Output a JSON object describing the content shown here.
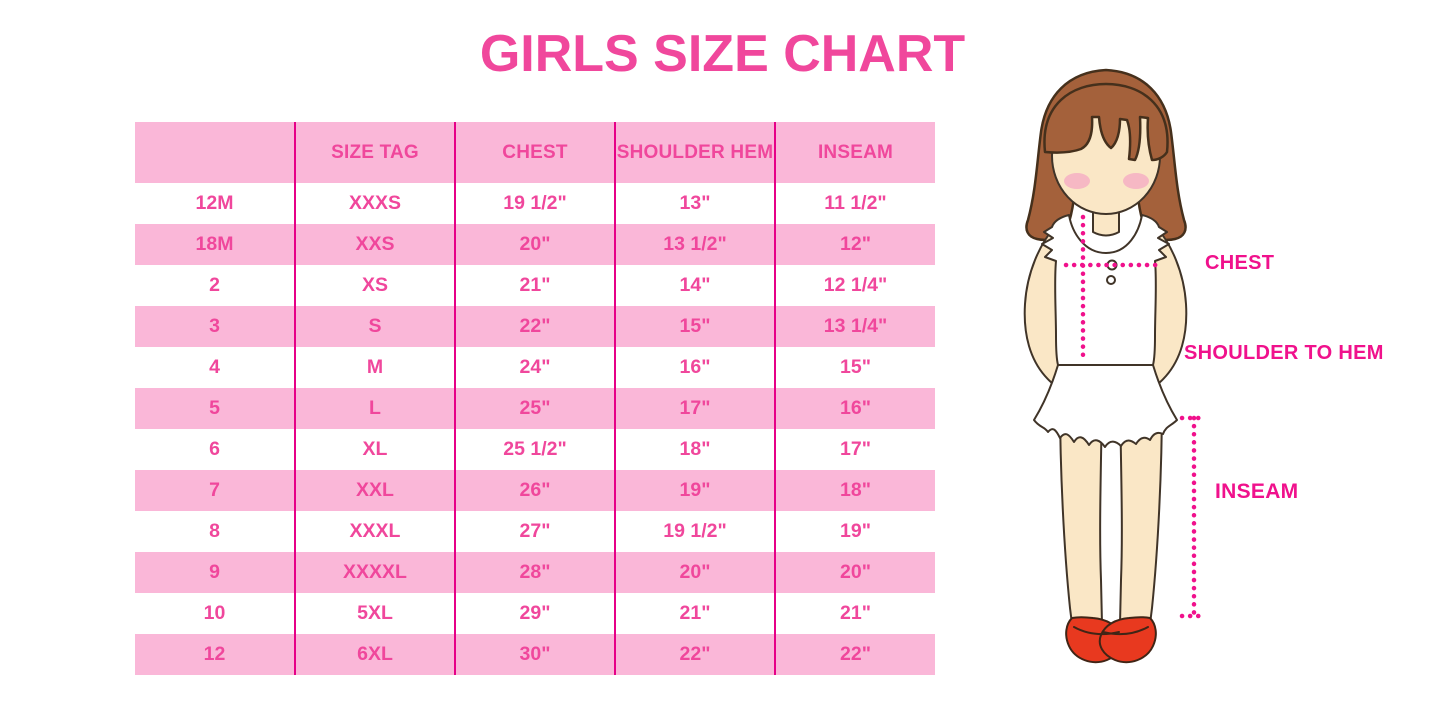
{
  "page": {
    "title": "GIRLS SIZE CHART"
  },
  "colors": {
    "title_pink": "#F0479C",
    "cell_text_pink": "#F0479C",
    "row_band_pink": "#FAB7D8",
    "column_separator_magenta": "#E60087",
    "measurement_pink": "#F0118C",
    "hair_brown": "#A4613B",
    "skin_tone": "#FAE7C6",
    "shoe_red": "#E8391F"
  },
  "chart_data": {
    "type": "table",
    "title": "GIRLS SIZE CHART",
    "columns": [
      "",
      "SIZE TAG",
      "CHEST",
      "SHOULDER HEM",
      "INSEAM"
    ],
    "rows": [
      [
        "12M",
        "XXXS",
        "19 1/2\"",
        "13\"",
        "11 1/2\""
      ],
      [
        "18M",
        "XXS",
        "20\"",
        "13 1/2\"",
        "12\""
      ],
      [
        "2",
        "XS",
        "21\"",
        "14\"",
        "12 1/4\""
      ],
      [
        "3",
        "S",
        "22\"",
        "15\"",
        "13 1/4\""
      ],
      [
        "4",
        "M",
        "24\"",
        "16\"",
        "15\""
      ],
      [
        "5",
        "L",
        "25\"",
        "17\"",
        "16\""
      ],
      [
        "6",
        "XL",
        "25 1/2\"",
        "18\"",
        "17\""
      ],
      [
        "7",
        "XXL",
        "26\"",
        "19\"",
        "18\""
      ],
      [
        "8",
        "XXXL",
        "27\"",
        "19 1/2\"",
        "19\""
      ],
      [
        "9",
        "XXXXL",
        "28\"",
        "20\"",
        "20\""
      ],
      [
        "10",
        "5XL",
        "29\"",
        "21\"",
        "21\""
      ],
      [
        "12",
        "6XL",
        "30\"",
        "22\"",
        "22\""
      ]
    ],
    "layout_hints": {
      "row_banding": "alternating white and pink",
      "gridlines": "vertical only"
    }
  },
  "illustration": {
    "labels": {
      "chest": "CHEST",
      "shoulder_to_hem": "SHOULDER TO HEM",
      "inseam": "INSEAM"
    }
  }
}
